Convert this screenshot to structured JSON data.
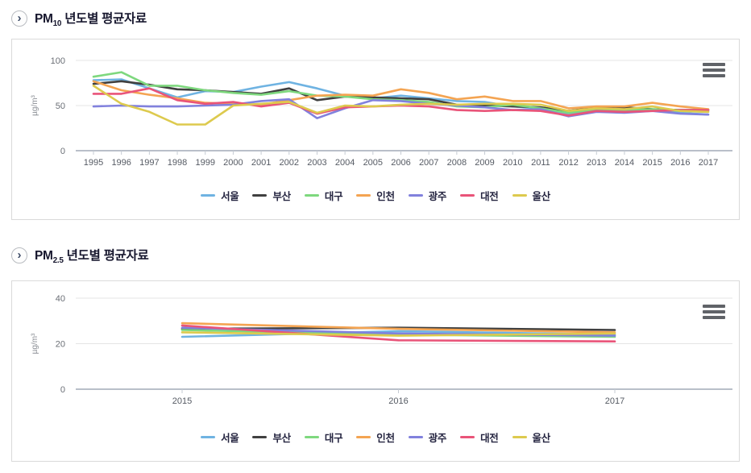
{
  "colors": {
    "panel_border": "#dadada",
    "title_text": "#17172e",
    "grid": "#e4e4e4",
    "axis": "#b9bfc9",
    "menu_icon": "#606368"
  },
  "icons": {
    "section_chevron": "chevron-right-circle",
    "section_chevron_glyph": "›",
    "chart_menu": "hamburger-menu"
  },
  "sections": [
    {
      "title_main": "PM",
      "title_sub": "10",
      "title_rest": " 년도별 평균자료"
    },
    {
      "title_main": "PM",
      "title_sub": "2.5",
      "title_rest": " 년도별 평균자료"
    }
  ],
  "chart_data": [
    {
      "type": "line",
      "title": "PM10 년도별 평균자료",
      "xlabel": "",
      "ylabel": "µg/m³",
      "x": [
        1995,
        1996,
        1997,
        1998,
        1999,
        2000,
        2001,
        2002,
        2003,
        2004,
        2005,
        2006,
        2007,
        2008,
        2009,
        2010,
        2011,
        2012,
        2013,
        2014,
        2015,
        2016,
        2017
      ],
      "ylim": [
        0,
        100
      ],
      "yticks": [
        0,
        50,
        100
      ],
      "grid": true,
      "legend_position": "bottom",
      "series": [
        {
          "name": "서울",
          "color": "#6FB3E2",
          "values": [
            78,
            79,
            69,
            59,
            66,
            65,
            71,
            76,
            69,
            61,
            58,
            61,
            58,
            55,
            54,
            49,
            47,
            41,
            45,
            46,
            45,
            42,
            40
          ]
        },
        {
          "name": "부산",
          "color": "#404040",
          "values": [
            74,
            77,
            73,
            68,
            67,
            65,
            63,
            69,
            56,
            60,
            59,
            58,
            57,
            51,
            50,
            49,
            48,
            44,
            48,
            48,
            46,
            45,
            45
          ]
        },
        {
          "name": "대구",
          "color": "#7ED87E",
          "values": [
            82,
            87,
            72,
            72,
            67,
            64,
            62,
            66,
            61,
            60,
            57,
            56,
            54,
            49,
            48,
            51,
            47,
            42,
            46,
            45,
            46,
            44,
            43
          ]
        },
        {
          "name": "인천",
          "color": "#F4A452",
          "values": [
            77,
            67,
            62,
            58,
            53,
            52,
            51,
            56,
            61,
            62,
            61,
            68,
            64,
            57,
            60,
            55,
            55,
            47,
            49,
            49,
            53,
            49,
            46
          ]
        },
        {
          "name": "광주",
          "color": "#8181DD",
          "values": [
            49,
            50,
            49,
            49,
            50,
            51,
            55,
            57,
            36,
            47,
            56,
            55,
            52,
            50,
            48,
            45,
            46,
            38,
            43,
            42,
            44,
            41,
            40
          ]
        },
        {
          "name": "대전",
          "color": "#E95479",
          "values": [
            63,
            63,
            69,
            56,
            52,
            54,
            49,
            53,
            41,
            48,
            49,
            50,
            49,
            45,
            44,
            45,
            44,
            39,
            44,
            43,
            44,
            45,
            45
          ]
        },
        {
          "name": "울산",
          "color": "#DDCA4E",
          "values": [
            72,
            52,
            43,
            29,
            29,
            50,
            52,
            54,
            42,
            50,
            49,
            51,
            52,
            51,
            52,
            52,
            51,
            44,
            47,
            46,
            49,
            44,
            43
          ]
        }
      ]
    },
    {
      "type": "line",
      "title": "PM2.5 년도별 평균자료",
      "xlabel": "",
      "ylabel": "µg/m³",
      "x": [
        2015,
        2016,
        2017
      ],
      "ylim": [
        0,
        40
      ],
      "yticks": [
        0,
        20,
        40
      ],
      "grid": true,
      "legend_position": "bottom",
      "series": [
        {
          "name": "서울",
          "color": "#6FB3E2",
          "values": [
            23,
            25.5,
            24
          ]
        },
        {
          "name": "부산",
          "color": "#404040",
          "values": [
            26.5,
            27,
            26
          ]
        },
        {
          "name": "대구",
          "color": "#7ED87E",
          "values": [
            26,
            24,
            23
          ]
        },
        {
          "name": "인천",
          "color": "#F4A452",
          "values": [
            29,
            26.5,
            25
          ]
        },
        {
          "name": "광주",
          "color": "#8181DD",
          "values": [
            27,
            24.5,
            23.5
          ]
        },
        {
          "name": "대전",
          "color": "#E95479",
          "values": [
            28,
            21.5,
            21
          ]
        },
        {
          "name": "울산",
          "color": "#DDCA4E",
          "values": [
            25,
            23.5,
            24.5
          ]
        }
      ]
    }
  ]
}
